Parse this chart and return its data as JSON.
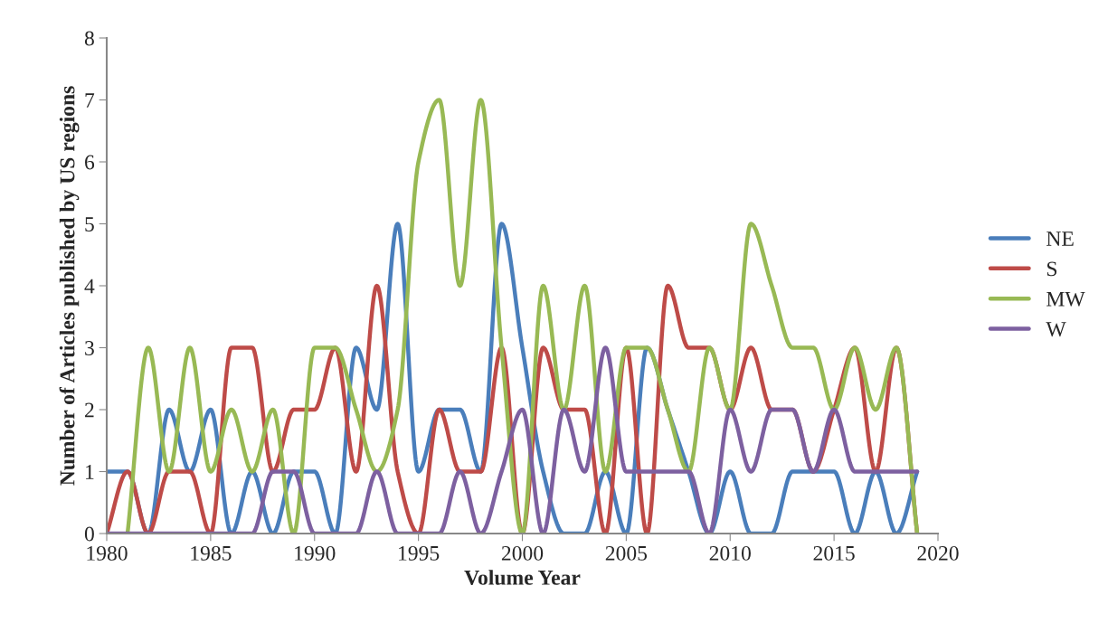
{
  "chart_data": {
    "type": "line",
    "xlabel": "Volume Year",
    "ylabel": "Number of Articles published by US regions",
    "x": [
      1980,
      1981,
      1982,
      1983,
      1984,
      1985,
      1986,
      1987,
      1988,
      1989,
      1990,
      1991,
      1992,
      1993,
      1994,
      1995,
      1996,
      1997,
      1998,
      1999,
      2000,
      2001,
      2002,
      2003,
      2004,
      2005,
      2006,
      2007,
      2008,
      2009,
      2010,
      2011,
      2012,
      2013,
      2014,
      2015,
      2016,
      2017,
      2018,
      2019
    ],
    "series": [
      {
        "name": "NE",
        "color": "#4a7ebb",
        "values": [
          1,
          1,
          0,
          2,
          1,
          2,
          0,
          1,
          0,
          1,
          1,
          0,
          3,
          2,
          5,
          1,
          2,
          2,
          1,
          5,
          3,
          1,
          0,
          0,
          1,
          0,
          3,
          2,
          1,
          0,
          1,
          0,
          0,
          1,
          1,
          1,
          0,
          1,
          0,
          1
        ]
      },
      {
        "name": "S",
        "color": "#be4b48",
        "values": [
          0,
          1,
          0,
          1,
          1,
          0,
          3,
          3,
          1,
          2,
          2,
          3,
          1,
          4,
          1,
          0,
          2,
          1,
          1,
          3,
          0,
          3,
          2,
          2,
          0,
          3,
          0,
          4,
          3,
          3,
          2,
          3,
          2,
          2,
          1,
          2,
          3,
          1,
          3,
          0
        ]
      },
      {
        "name": "MW",
        "color": "#98b954",
        "values": [
          null,
          0,
          3,
          1,
          3,
          1,
          2,
          1,
          2,
          0,
          3,
          3,
          2,
          1,
          2,
          6,
          7,
          4,
          7,
          3,
          0,
          4,
          2,
          4,
          1,
          3,
          3,
          2,
          1,
          3,
          2,
          5,
          4,
          3,
          3,
          2,
          3,
          2,
          3,
          0
        ]
      },
      {
        "name": "W",
        "color": "#7d60a0",
        "values": [
          0,
          0,
          0,
          0,
          0,
          0,
          0,
          0,
          1,
          1,
          0,
          0,
          0,
          1,
          0,
          0,
          0,
          1,
          0,
          1,
          2,
          0,
          2,
          1,
          3,
          1,
          1,
          1,
          1,
          0,
          2,
          1,
          2,
          2,
          1,
          2,
          1,
          1,
          1,
          1
        ]
      }
    ],
    "xlim": [
      1980,
      2020
    ],
    "xticks": [
      1980,
      1985,
      1990,
      1995,
      2000,
      2005,
      2010,
      2015,
      2020
    ],
    "ylim": [
      0,
      8
    ],
    "yticks": [
      0,
      1,
      2,
      3,
      4,
      5,
      6,
      7,
      8
    ],
    "grid": false,
    "legend": "right",
    "line_style": "solid"
  }
}
